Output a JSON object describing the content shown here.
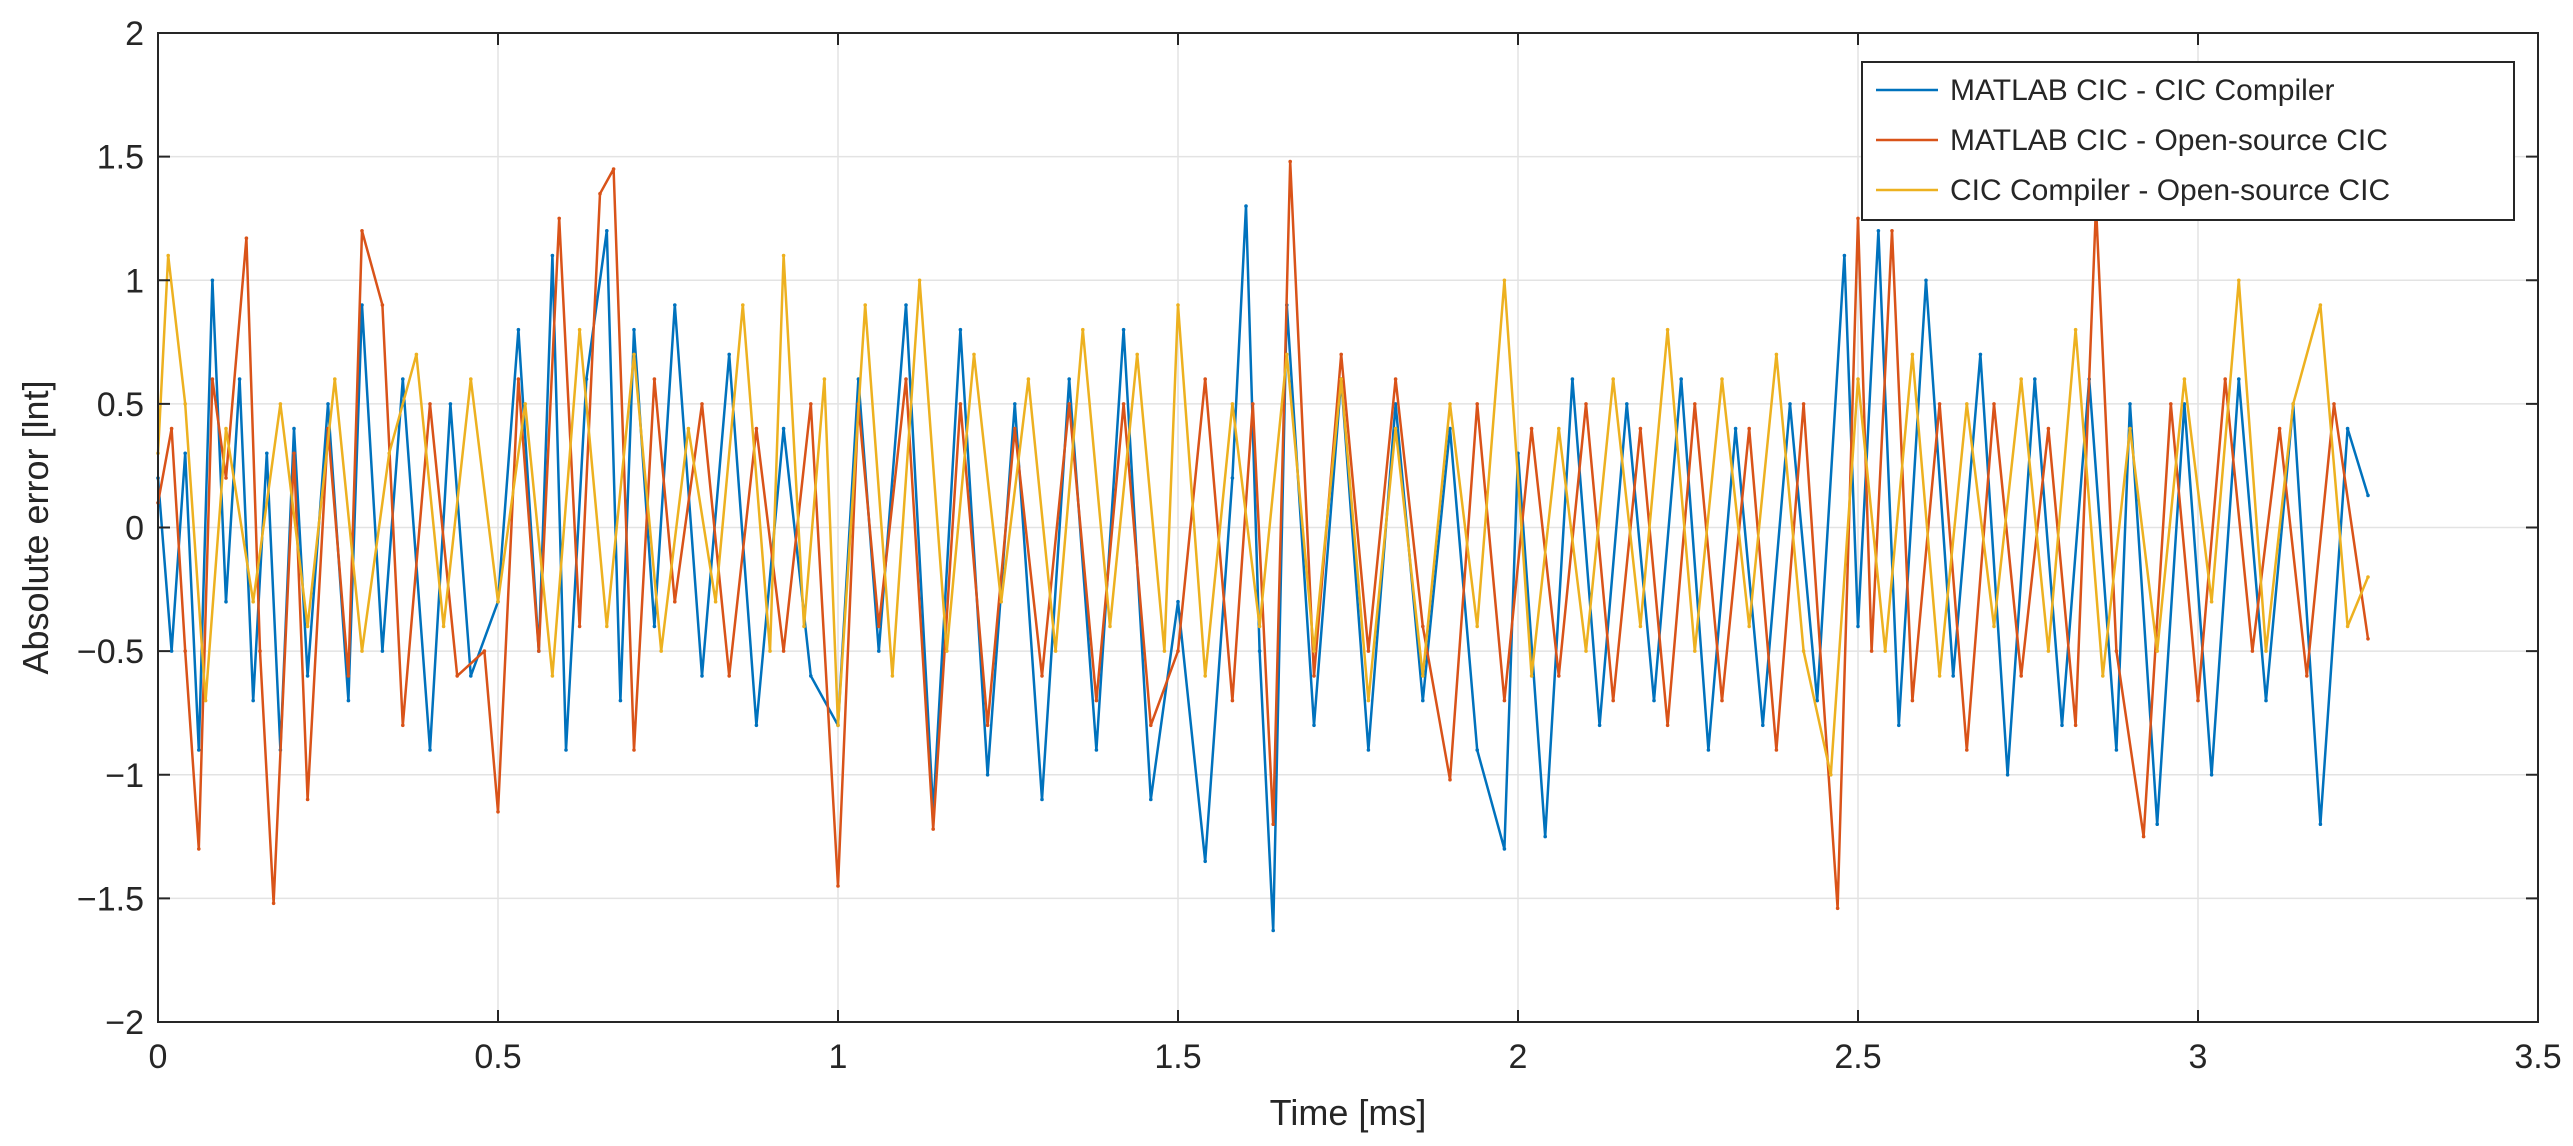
{
  "chart_data": {
    "type": "line",
    "xlabel": "Time [ms]",
    "ylabel": "Absolute error [lnt]",
    "xlim": [
      0,
      3.5
    ],
    "ylim": [
      -2,
      2
    ],
    "xticks": [
      0,
      0.5,
      1,
      1.5,
      2,
      2.5,
      3,
      3.5
    ],
    "xtick_labels": [
      "0",
      "0.5",
      "1",
      "1.5",
      "2",
      "2.5",
      "3",
      "3.5"
    ],
    "yticks": [
      -2,
      -1.5,
      -1,
      -0.5,
      0,
      0.5,
      1,
      1.5,
      2
    ],
    "ytick_labels": [
      "−2",
      "−1.5",
      "−1",
      "−0.5",
      "0",
      "0.5",
      "1",
      "1.5",
      "2"
    ],
    "grid": true,
    "legend_position": "top-right",
    "series": [
      {
        "name": "MATLAB CIC - CIC Compiler",
        "color": "#0072BD",
        "x": [
          0,
          0.02,
          0.04,
          0.06,
          0.08,
          0.1,
          0.12,
          0.14,
          0.16,
          0.18,
          0.2,
          0.22,
          0.25,
          0.28,
          0.3,
          0.33,
          0.36,
          0.4,
          0.43,
          0.46,
          0.5,
          0.53,
          0.56,
          0.58,
          0.6,
          0.63,
          0.66,
          0.68,
          0.7,
          0.73,
          0.76,
          0.8,
          0.84,
          0.88,
          0.92,
          0.96,
          1.0,
          1.03,
          1.06,
          1.1,
          1.14,
          1.18,
          1.22,
          1.26,
          1.3,
          1.34,
          1.38,
          1.42,
          1.46,
          1.5,
          1.54,
          1.58,
          1.6,
          1.62,
          1.64,
          1.66,
          1.7,
          1.74,
          1.78,
          1.82,
          1.86,
          1.9,
          1.94,
          1.98,
          2.0,
          2.04,
          2.08,
          2.12,
          2.16,
          2.2,
          2.24,
          2.28,
          2.32,
          2.36,
          2.4,
          2.44,
          2.48,
          2.5,
          2.53,
          2.56,
          2.6,
          2.64,
          2.68,
          2.72,
          2.76,
          2.8,
          2.84,
          2.88,
          2.9,
          2.94,
          2.98,
          3.02,
          3.06,
          3.1,
          3.14,
          3.18,
          3.22,
          3.25
        ],
        "values": [
          0.2,
          -0.5,
          0.3,
          -0.9,
          1.0,
          -0.3,
          0.6,
          -0.7,
          0.3,
          -0.9,
          0.4,
          -0.6,
          0.5,
          -0.7,
          0.9,
          -0.5,
          0.6,
          -0.9,
          0.5,
          -0.6,
          -0.3,
          0.8,
          -0.5,
          1.1,
          -0.9,
          0.6,
          1.2,
          -0.7,
          0.8,
          -0.4,
          0.9,
          -0.6,
          0.7,
          -0.8,
          0.4,
          -0.6,
          -0.8,
          0.6,
          -0.5,
          0.9,
          -1.15,
          0.8,
          -1.0,
          0.5,
          -1.1,
          0.6,
          -0.9,
          0.8,
          -1.1,
          -0.3,
          -1.35,
          0.2,
          1.3,
          -0.5,
          -1.63,
          0.9,
          -0.8,
          0.6,
          -0.9,
          0.5,
          -0.7,
          0.4,
          -0.9,
          -1.3,
          0.3,
          -1.25,
          0.6,
          -0.8,
          0.5,
          -0.7,
          0.6,
          -0.9,
          0.4,
          -0.8,
          0.5,
          -0.7,
          1.1,
          -0.4,
          1.2,
          -0.8,
          1.0,
          -0.6,
          0.7,
          -1.0,
          0.6,
          -0.8,
          0.6,
          -0.9,
          0.5,
          -1.2,
          0.5,
          -1.0,
          0.6,
          -0.7,
          0.5,
          -1.2,
          0.4,
          0.13
        ]
      },
      {
        "name": "MATLAB CIC - Open-source CIC",
        "color": "#D95319",
        "x": [
          0,
          0.02,
          0.04,
          0.06,
          0.08,
          0.1,
          0.13,
          0.15,
          0.17,
          0.2,
          0.22,
          0.25,
          0.28,
          0.3,
          0.33,
          0.36,
          0.4,
          0.44,
          0.48,
          0.5,
          0.53,
          0.56,
          0.59,
          0.62,
          0.65,
          0.67,
          0.7,
          0.73,
          0.76,
          0.8,
          0.84,
          0.88,
          0.92,
          0.96,
          1.0,
          1.03,
          1.06,
          1.1,
          1.14,
          1.18,
          1.22,
          1.26,
          1.3,
          1.34,
          1.38,
          1.42,
          1.46,
          1.5,
          1.54,
          1.58,
          1.61,
          1.64,
          1.665,
          1.7,
          1.74,
          1.78,
          1.82,
          1.86,
          1.9,
          1.94,
          1.98,
          2.02,
          2.06,
          2.1,
          2.14,
          2.18,
          2.22,
          2.26,
          2.3,
          2.34,
          2.38,
          2.42,
          2.47,
          2.5,
          2.52,
          2.55,
          2.58,
          2.62,
          2.66,
          2.7,
          2.74,
          2.78,
          2.82,
          2.85,
          2.88,
          2.92,
          2.96,
          3.0,
          3.04,
          3.08,
          3.12,
          3.16,
          3.2,
          3.25
        ],
        "values": [
          0.1,
          0.4,
          -0.5,
          -1.3,
          0.6,
          0.2,
          1.17,
          -0.5,
          -1.52,
          0.3,
          -1.1,
          0.4,
          -0.6,
          1.2,
          0.9,
          -0.8,
          0.5,
          -0.6,
          -0.5,
          -1.15,
          0.6,
          -0.5,
          1.25,
          -0.4,
          1.35,
          1.45,
          -0.9,
          0.6,
          -0.3,
          0.5,
          -0.6,
          0.4,
          -0.5,
          0.5,
          -1.45,
          0.5,
          -0.4,
          0.6,
          -1.22,
          0.5,
          -0.8,
          0.4,
          -0.6,
          0.5,
          -0.7,
          0.5,
          -0.8,
          -0.5,
          0.6,
          -0.7,
          0.5,
          -1.2,
          1.48,
          -0.6,
          0.7,
          -0.5,
          0.6,
          -0.4,
          -1.02,
          0.5,
          -0.7,
          0.4,
          -0.6,
          0.5,
          -0.7,
          0.4,
          -0.8,
          0.5,
          -0.7,
          0.4,
          -0.9,
          0.5,
          -1.54,
          1.25,
          -0.5,
          1.2,
          -0.7,
          0.5,
          -0.9,
          0.5,
          -0.6,
          0.4,
          -0.8,
          1.3,
          -0.5,
          -1.25,
          0.5,
          -0.7,
          0.6,
          -0.5,
          0.4,
          -0.6,
          0.5,
          -0.45
        ]
      },
      {
        "name": "CIC Compiler - Open-source CIC",
        "color": "#EDB120",
        "x": [
          0,
          0.015,
          0.04,
          0.07,
          0.1,
          0.14,
          0.18,
          0.22,
          0.26,
          0.3,
          0.34,
          0.38,
          0.42,
          0.46,
          0.5,
          0.54,
          0.58,
          0.62,
          0.66,
          0.7,
          0.74,
          0.78,
          0.82,
          0.86,
          0.9,
          0.92,
          0.95,
          0.98,
          1.0,
          1.04,
          1.08,
          1.12,
          1.16,
          1.2,
          1.24,
          1.28,
          1.32,
          1.36,
          1.4,
          1.44,
          1.48,
          1.5,
          1.54,
          1.58,
          1.62,
          1.66,
          1.7,
          1.74,
          1.78,
          1.82,
          1.86,
          1.9,
          1.94,
          1.98,
          2.02,
          2.06,
          2.1,
          2.14,
          2.18,
          2.22,
          2.26,
          2.3,
          2.34,
          2.38,
          2.42,
          2.46,
          2.5,
          2.54,
          2.58,
          2.62,
          2.66,
          2.7,
          2.74,
          2.78,
          2.82,
          2.86,
          2.9,
          2.94,
          2.98,
          3.02,
          3.06,
          3.1,
          3.14,
          3.18,
          3.22,
          3.25
        ],
        "values": [
          0.3,
          1.1,
          0.5,
          -0.7,
          0.4,
          -0.3,
          0.5,
          -0.4,
          0.6,
          -0.5,
          0.3,
          0.7,
          -0.4,
          0.6,
          -0.3,
          0.5,
          -0.6,
          0.8,
          -0.4,
          0.7,
          -0.5,
          0.4,
          -0.3,
          0.9,
          -0.5,
          1.1,
          -0.4,
          0.6,
          -0.8,
          0.9,
          -0.6,
          1.0,
          -0.5,
          0.7,
          -0.3,
          0.6,
          -0.5,
          0.8,
          -0.4,
          0.7,
          -0.5,
          0.9,
          -0.6,
          0.5,
          -0.4,
          0.7,
          -0.5,
          0.6,
          -0.7,
          0.4,
          -0.6,
          0.5,
          -0.4,
          1.0,
          -0.6,
          0.4,
          -0.5,
          0.6,
          -0.4,
          0.8,
          -0.5,
          0.6,
          -0.4,
          0.7,
          -0.5,
          -1.0,
          0.6,
          -0.5,
          0.7,
          -0.6,
          0.5,
          -0.4,
          0.6,
          -0.5,
          0.8,
          -0.6,
          0.4,
          -0.5,
          0.6,
          -0.3,
          1.0,
          -0.5,
          0.5,
          0.9,
          -0.4,
          -0.2
        ]
      }
    ]
  }
}
